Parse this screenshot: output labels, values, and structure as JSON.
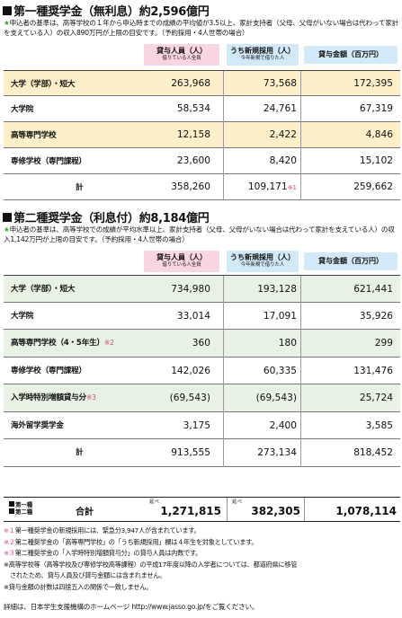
{
  "section1": {
    "title": "第一種奨学金（無利息）約2,596億円",
    "note_star": "★",
    "note": "申込者の基準は、高等学校の１年から申込時までの成績の平均値が3.5以上、家計支持者（父母、父母がいない場合は代わって家計を支えている人）の収入890万円が上限の目安です。（予約採用・4人世帯の場合）",
    "headers": {
      "recipients": "貸与人員（人）",
      "recipients_sub": "借りている人全員",
      "new": "うち新規採用（人）",
      "new_sub": "今年新規で借りた人",
      "amount": "貸与金額（百万円）"
    },
    "rows": [
      {
        "label": "大学（学部）・短大",
        "mark": "",
        "v1": "263,968",
        "v2": "73,568",
        "v2mark": "",
        "v3": "172,395"
      },
      {
        "label": "大学院",
        "mark": "",
        "v1": "58,534",
        "v2": "24,761",
        "v2mark": "",
        "v3": "67,319"
      },
      {
        "label": "高等専門学校",
        "mark": "",
        "v1": "12,158",
        "v2": "2,422",
        "v2mark": "",
        "v3": "4,846"
      },
      {
        "label": "専修学校（専門課程）",
        "mark": "",
        "v1": "23,600",
        "v2": "8,420",
        "v2mark": "",
        "v3": "15,102"
      },
      {
        "label": "計",
        "mark": "",
        "v1": "358,260",
        "v2": "109,171",
        "v2mark": "※1",
        "v3": "259,662"
      }
    ]
  },
  "section2": {
    "title": "第二種奨学金（利息付）約8,184億円",
    "note_star": "★",
    "note": "申込者の基準は、高等学校での成績が平均水準以上、家計支持者（父母、父母がいない場合は代わって家計を支えている人）の収入1,142万円が上限の目安です。（予約採用・4人世帯の場合）",
    "headers": {
      "recipients": "貸与人員（人）",
      "recipients_sub": "借りている人全員",
      "new": "うち新規採用（人）",
      "new_sub": "今年新規で借りた人",
      "amount": "貸与金額（百万円）"
    },
    "rows": [
      {
        "label": "大学（学部）・短大",
        "mark": "",
        "v1": "734,980",
        "v2": "193,128",
        "v3": "621,441"
      },
      {
        "label": "大学院",
        "mark": "",
        "v1": "33,014",
        "v2": "17,091",
        "v3": "35,926"
      },
      {
        "label": "高等専門学校（4・5年生）",
        "mark": "※2",
        "v1": "360",
        "v2": "180",
        "v3": "299"
      },
      {
        "label": "専修学校（専門課程）",
        "mark": "",
        "v1": "142,026",
        "v2": "60,335",
        "v3": "131,476"
      },
      {
        "label": "入学時特別増額貸与分",
        "mark": "※3",
        "v1": "(69,543)",
        "v2": "(69,543)",
        "v3": "25,724"
      },
      {
        "label": "海外留学奨学金",
        "mark": "",
        "v1": "3,175",
        "v2": "2,400",
        "v3": "3,585"
      },
      {
        "label": "計",
        "mark": "",
        "v1": "913,555",
        "v2": "273,134",
        "v3": "818,452"
      }
    ]
  },
  "grand_total": {
    "label_1": "第一種",
    "label_2": "第二種",
    "sum_label": "合計",
    "nobe": "延べ",
    "v1": "1,271,815",
    "v2": "382,305",
    "v3": "1,078,114"
  },
  "footnotes": [
    {
      "mark": "※１",
      "text": "第一種奨学金の新規採用には、緊急分3,947人が含まれています。"
    },
    {
      "mark": "※２",
      "text": "第二種奨学金の「高等専門学校」の「うち新規採用」欄は４年生を対象としています。"
    },
    {
      "mark": "※３",
      "text": "第二種奨学金の「入学時特別増額貸与分」の貸与人員は内数です。"
    },
    {
      "mark": "",
      "text": "※高等学校等（高等学校及び専修学校高等課程）の平成17年度以降の入学者については、都道府県に移管"
    },
    {
      "mark": "",
      "text": "　されたため、貸与人員及び貸与金額には含まれません。"
    },
    {
      "mark": "",
      "text": "※貸与金額の計数は四捨五入の関係で一致しません。"
    }
  ],
  "more_info": "詳細は、日本学生支援機構のホームページ http://www.jasso.go.jp/をご覧ください。"
}
